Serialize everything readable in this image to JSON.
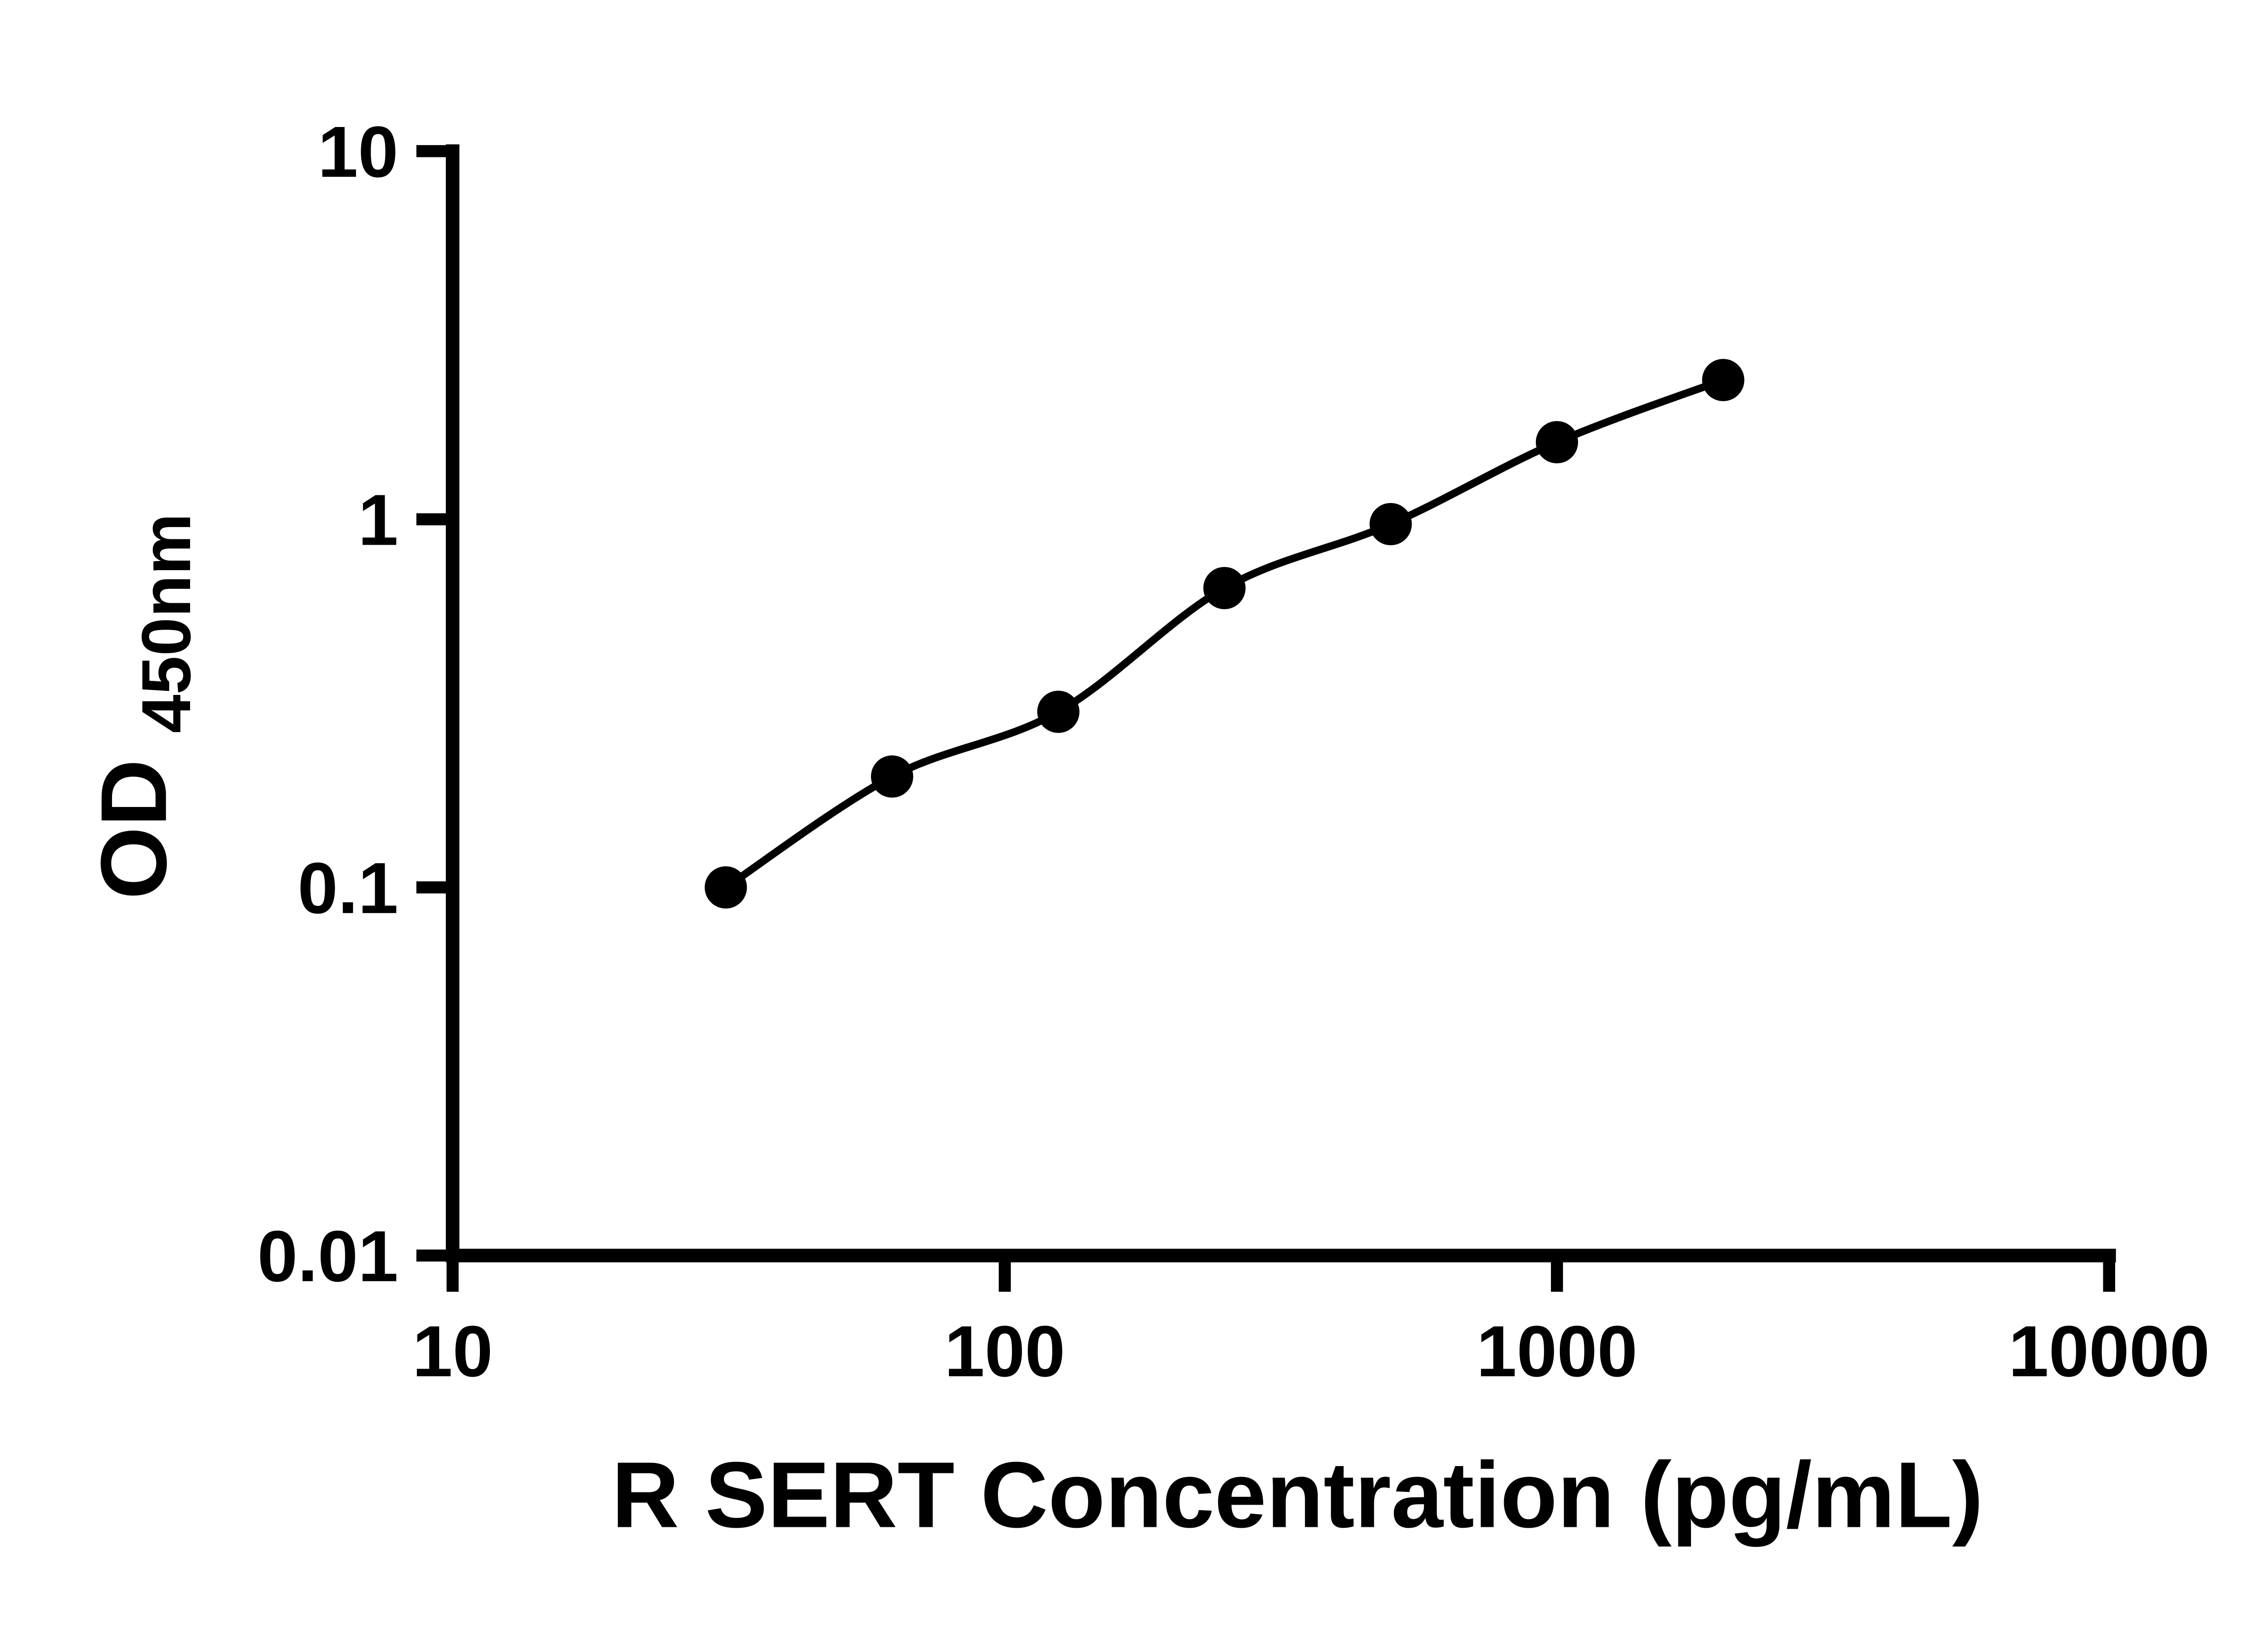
{
  "chart_data": {
    "type": "scatter",
    "title": "",
    "xlabel": "R SERT Concentration (pg/mL)",
    "ylabel": "OD",
    "ylabel_subscript": "450nm",
    "x_scale": "log",
    "y_scale": "log",
    "xlim": [
      10,
      10000
    ],
    "ylim": [
      0.01,
      10
    ],
    "x_ticks": [
      10,
      100,
      1000,
      10000
    ],
    "x_tick_labels": [
      "10",
      "100",
      "1000",
      "10000"
    ],
    "y_ticks": [
      0.01,
      0.1,
      1,
      10
    ],
    "y_tick_labels": [
      "0.01",
      "0.1",
      "1",
      "10"
    ],
    "grid": false,
    "legend": false,
    "series": [
      {
        "marker": "circle",
        "marker_color": "#000000",
        "line_color": "#000000",
        "points": [
          {
            "x": 31.25,
            "y": 0.1
          },
          {
            "x": 62.5,
            "y": 0.2
          },
          {
            "x": 125,
            "y": 0.3
          },
          {
            "x": 250,
            "y": 0.65
          },
          {
            "x": 500,
            "y": 0.97
          },
          {
            "x": 1000,
            "y": 1.62
          },
          {
            "x": 2000,
            "y": 2.39
          }
        ]
      }
    ]
  },
  "colors": {
    "axis": "#000000",
    "background": "#ffffff",
    "marker": "#000000",
    "curve": "#000000"
  }
}
